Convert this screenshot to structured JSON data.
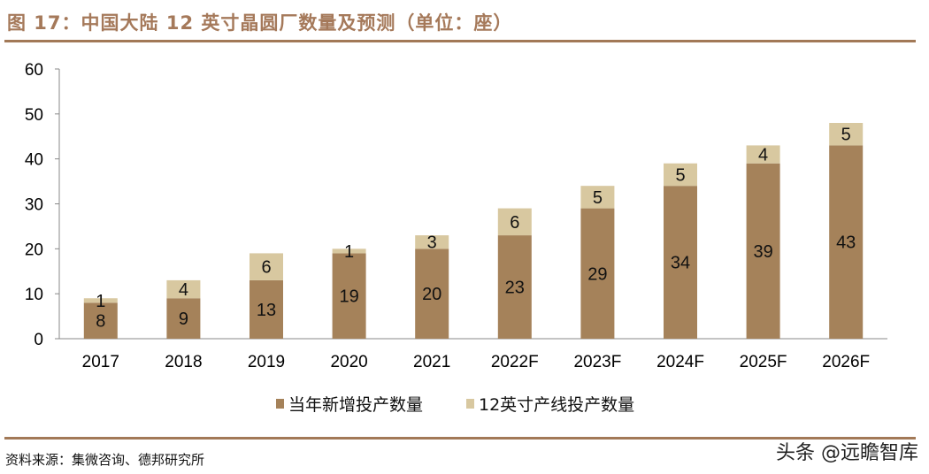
{
  "title": "图 17：中国大陆 12 英寸晶圆厂数量及预测（单位：座）",
  "source": "资料来源：集微咨询、德邦研究所",
  "watermark": "头条 @远瞻智库",
  "colors": {
    "base": "#a5825a",
    "top": "#d8c8a0",
    "accent": "#a27957"
  },
  "chart_data": {
    "type": "bar",
    "stacked": true,
    "categories": [
      "2017",
      "2018",
      "2019",
      "2020",
      "2021",
      "2022F",
      "2023F",
      "2024F",
      "2025F",
      "2026F"
    ],
    "series": [
      {
        "name": "当年新增投产数量",
        "values": [
          8,
          9,
          13,
          19,
          20,
          23,
          29,
          34,
          39,
          43
        ]
      },
      {
        "name": "12英寸产线投产数量",
        "values": [
          1,
          4,
          6,
          1,
          3,
          6,
          5,
          5,
          4,
          5
        ]
      }
    ],
    "ylim": [
      0,
      60
    ],
    "yticks": [
      0,
      10,
      20,
      30,
      40,
      50,
      60
    ],
    "grid": false,
    "legend": "bottom"
  }
}
